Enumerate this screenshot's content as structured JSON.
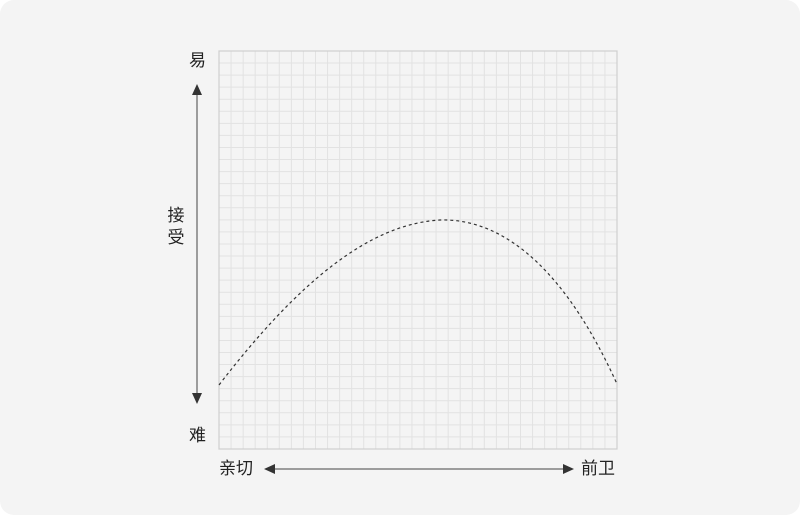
{
  "axis": {
    "y_top": "易",
    "y_bottom": "难",
    "y_label": "接受",
    "x_left": "亲切",
    "x_right": "前卫"
  },
  "colors": {
    "background": "#f4f4f4",
    "grid": "#e2e2e2",
    "frame": "#cfcfcf",
    "curve": "#333333",
    "arrow": "#444444"
  }
}
